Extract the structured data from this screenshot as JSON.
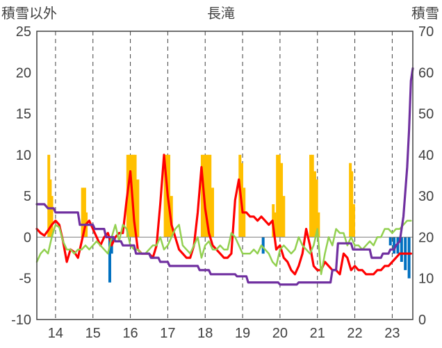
{
  "chart_data": {
    "type": "line",
    "title": "長滝",
    "left_axis_label": "積雪以外",
    "right_axis_label": "積雪",
    "ylim_left": [
      -10,
      25
    ],
    "yticks_left": [
      -10,
      -5,
      0,
      5,
      10,
      15,
      20,
      25
    ],
    "ylim_right": [
      0,
      70
    ],
    "yticks_right": [
      0,
      10,
      20,
      30,
      40,
      50,
      60,
      70
    ],
    "xlim": [
      13.5,
      23.55
    ],
    "xticks": [
      14,
      15,
      16,
      17,
      18,
      19,
      20,
      21,
      22,
      23
    ],
    "xtick_labels": [
      "14",
      "15",
      "16",
      "17",
      "18",
      "19",
      "20",
      "21",
      "22",
      "23"
    ],
    "grid": "vertical dashed at each x tick",
    "colors": {
      "bars_positive": "#FFC000",
      "bars_negative": "#0070C0",
      "series_red": "#FF0000",
      "series_green": "#92D050",
      "series_purple": "#7030A0",
      "axis": "#404040"
    },
    "bars": [
      {
        "x": 13.82,
        "value": 10
      },
      {
        "x": 13.86,
        "value": 7
      },
      {
        "x": 13.9,
        "value": 5
      },
      {
        "x": 14.72,
        "value": 6
      },
      {
        "x": 14.78,
        "value": 6
      },
      {
        "x": 14.82,
        "value": 3
      },
      {
        "x": 15.45,
        "value": -5.5
      },
      {
        "x": 15.5,
        "value": -2
      },
      {
        "x": 15.93,
        "value": 10
      },
      {
        "x": 15.98,
        "value": 10
      },
      {
        "x": 16.03,
        "value": 10
      },
      {
        "x": 16.08,
        "value": 10
      },
      {
        "x": 16.13,
        "value": 10
      },
      {
        "x": 16.2,
        "value": 7
      },
      {
        "x": 16.93,
        "value": 10
      },
      {
        "x": 16.98,
        "value": 10
      },
      {
        "x": 17.03,
        "value": 10
      },
      {
        "x": 17.1,
        "value": 5
      },
      {
        "x": 17.92,
        "value": 10
      },
      {
        "x": 17.97,
        "value": 10
      },
      {
        "x": 18.02,
        "value": 10
      },
      {
        "x": 18.07,
        "value": 10
      },
      {
        "x": 18.13,
        "value": 10
      },
      {
        "x": 18.2,
        "value": 6
      },
      {
        "x": 18.93,
        "value": 10
      },
      {
        "x": 18.98,
        "value": 9
      },
      {
        "x": 19.04,
        "value": 6
      },
      {
        "x": 19.55,
        "value": -2
      },
      {
        "x": 19.82,
        "value": 4
      },
      {
        "x": 19.86,
        "value": 3
      },
      {
        "x": 19.93,
        "value": 10
      },
      {
        "x": 19.98,
        "value": 10
      },
      {
        "x": 20.04,
        "value": 9
      },
      {
        "x": 20.1,
        "value": 5
      },
      {
        "x": 20.82,
        "value": 10
      },
      {
        "x": 20.87,
        "value": 10
      },
      {
        "x": 20.93,
        "value": 8
      },
      {
        "x": 20.98,
        "value": 7
      },
      {
        "x": 21.03,
        "value": 3
      },
      {
        "x": 21.88,
        "value": 9
      },
      {
        "x": 21.92,
        "value": 8
      },
      {
        "x": 21.97,
        "value": 4
      },
      {
        "x": 22.95,
        "value": -1
      },
      {
        "x": 23.05,
        "value": -2
      },
      {
        "x": 23.15,
        "value": -2
      },
      {
        "x": 23.25,
        "value": -3
      },
      {
        "x": 23.35,
        "value": -4
      },
      {
        "x": 23.45,
        "value": -5
      }
    ],
    "series": [
      {
        "color": "#FF0000",
        "axis": "left",
        "x": [
          13.5,
          13.6,
          13.7,
          13.8,
          13.9,
          14.0,
          14.1,
          14.2,
          14.3,
          14.4,
          14.5,
          14.6,
          14.7,
          14.8,
          14.9,
          15.0,
          15.1,
          15.2,
          15.3,
          15.4,
          15.5,
          15.6,
          15.7,
          15.8,
          15.9,
          16.0,
          16.1,
          16.2,
          16.3,
          16.4,
          16.5,
          16.6,
          16.7,
          16.8,
          16.9,
          17.0,
          17.1,
          17.2,
          17.3,
          17.4,
          17.5,
          17.6,
          17.7,
          17.8,
          17.9,
          18.0,
          18.1,
          18.2,
          18.3,
          18.4,
          18.5,
          18.6,
          18.7,
          18.8,
          18.9,
          19.0,
          19.1,
          19.2,
          19.3,
          19.4,
          19.5,
          19.6,
          19.7,
          19.8,
          19.9,
          20.0,
          20.1,
          20.2,
          20.3,
          20.4,
          20.5,
          20.6,
          20.7,
          20.8,
          20.9,
          21.0,
          21.1,
          21.2,
          21.3,
          21.4,
          21.5,
          21.6,
          21.7,
          21.8,
          21.9,
          22.0,
          22.1,
          22.2,
          22.3,
          22.4,
          22.5,
          22.6,
          22.7,
          22.8,
          22.9,
          23.0,
          23.1,
          23.2,
          23.3,
          23.4,
          23.5
        ],
        "y": [
          1,
          0.5,
          0.2,
          0.8,
          1.5,
          2,
          1.5,
          -0.5,
          -3,
          -1.5,
          -1.8,
          -2.5,
          -0.5,
          1.5,
          2,
          1,
          0,
          -1,
          0,
          0.5,
          -1,
          0,
          0.5,
          0.5,
          4.5,
          8,
          2,
          -1.5,
          -2,
          -2,
          -2,
          -2.5,
          -1,
          4,
          10,
          5,
          1.5,
          0,
          -1.5,
          -2,
          -2.5,
          -2.5,
          -1,
          3,
          8.5,
          3.5,
          0.5,
          -1,
          -1.5,
          -2,
          -2.5,
          -2.5,
          -2,
          4.5,
          7,
          3,
          3,
          2.5,
          2.5,
          2,
          2.5,
          2,
          1.5,
          2,
          -1.5,
          -1,
          -2.5,
          -3,
          -4,
          -4.5,
          -3.5,
          -2,
          1,
          -1,
          -3.5,
          -4,
          -4,
          -3,
          -3.5,
          -4,
          -4,
          -4.5,
          -2,
          -2.5,
          -4,
          -3.5,
          -4,
          -4,
          -4.5,
          -4.5,
          -4.5,
          -4,
          -4,
          -3.5,
          -3.5,
          -3,
          -2.5,
          -2,
          -2,
          -2,
          -2
        ]
      },
      {
        "color": "#92D050",
        "axis": "left",
        "x": [
          13.5,
          13.6,
          13.7,
          13.8,
          13.9,
          14.0,
          14.1,
          14.2,
          14.3,
          14.4,
          14.5,
          14.6,
          14.7,
          14.8,
          14.9,
          15.0,
          15.1,
          15.2,
          15.3,
          15.4,
          15.5,
          15.6,
          15.7,
          15.8,
          15.9,
          16.0,
          16.1,
          16.2,
          16.3,
          16.4,
          16.5,
          16.6,
          16.7,
          16.8,
          16.9,
          17.0,
          17.1,
          17.2,
          17.3,
          17.4,
          17.5,
          17.6,
          17.7,
          17.8,
          17.9,
          18.0,
          18.1,
          18.2,
          18.3,
          18.4,
          18.5,
          18.6,
          18.7,
          18.8,
          18.9,
          19.0,
          19.1,
          19.2,
          19.3,
          19.4,
          19.5,
          19.6,
          19.7,
          19.8,
          19.9,
          20.0,
          20.1,
          20.2,
          20.3,
          20.4,
          20.5,
          20.6,
          20.7,
          20.8,
          20.9,
          21.0,
          21.1,
          21.2,
          21.3,
          21.4,
          21.5,
          21.6,
          21.7,
          21.8,
          21.9,
          22.0,
          22.1,
          22.2,
          22.3,
          22.4,
          22.5,
          22.6,
          22.7,
          22.8,
          22.9,
          23.0,
          23.1,
          23.2,
          23.3,
          23.4,
          23.5
        ],
        "y": [
          -3,
          -2,
          -1.5,
          -2,
          0,
          1.5,
          1.2,
          -0.5,
          -1.5,
          -1.5,
          -2,
          -1.5,
          -1.5,
          -1,
          -1.5,
          -1,
          -0.5,
          -1,
          -1.5,
          -2,
          0,
          1.5,
          -0.5,
          1.5,
          1,
          -1,
          -1.5,
          -1.5,
          -2,
          -2,
          -1.5,
          -1,
          -1,
          0,
          -1.5,
          -1,
          0,
          1,
          1.5,
          -1,
          -1.5,
          -2,
          -1,
          0,
          -2.5,
          -1,
          -0.5,
          -1.5,
          -1.5,
          -1,
          -1.5,
          -1.5,
          0.5,
          0,
          -1,
          -2,
          -2,
          -2,
          -1.5,
          -2,
          -1,
          -1.5,
          -2,
          -3,
          -3.5,
          -1.5,
          -1,
          -1.5,
          -2,
          -1.5,
          0,
          -1,
          -1.5,
          -2,
          -1,
          1,
          -4.5,
          -2,
          0,
          -1,
          1,
          0.5,
          0.5,
          -1,
          0,
          -1,
          -1,
          -1.5,
          -1,
          -0.5,
          -1,
          0,
          0,
          1,
          1,
          0.5,
          1,
          1,
          1.5,
          2,
          2
        ]
      },
      {
        "color": "#7030A0",
        "axis": "right",
        "x": [
          13.5,
          13.7,
          13.8,
          13.95,
          14.0,
          14.6,
          14.65,
          15.0,
          15.05,
          15.3,
          15.35,
          15.55,
          15.6,
          15.75,
          15.8,
          16.1,
          16.15,
          16.5,
          16.55,
          16.75,
          16.8,
          17.0,
          17.05,
          17.8,
          17.85,
          18.1,
          18.15,
          18.8,
          18.85,
          19.1,
          19.15,
          19.95,
          20.0,
          20.45,
          20.5,
          21.35,
          21.4,
          21.5,
          21.55,
          21.9,
          21.95,
          22.4,
          22.45,
          22.7,
          22.75,
          22.9,
          22.95,
          23.05,
          23.1,
          23.2,
          23.3,
          23.4,
          23.45,
          23.5,
          23.55
        ],
        "y": [
          28,
          28,
          27,
          27,
          26,
          26,
          23,
          23,
          22,
          22,
          20,
          20,
          19,
          19,
          18,
          18,
          16,
          16,
          15,
          15,
          14,
          14,
          13,
          13,
          12,
          12,
          11,
          11,
          10.5,
          10.5,
          9,
          9,
          8.5,
          8.5,
          9,
          9,
          12,
          12,
          18.5,
          18.5,
          17,
          17,
          15,
          15,
          16,
          16,
          17,
          17,
          18,
          19,
          25,
          37,
          46,
          58,
          61
        ]
      }
    ]
  }
}
